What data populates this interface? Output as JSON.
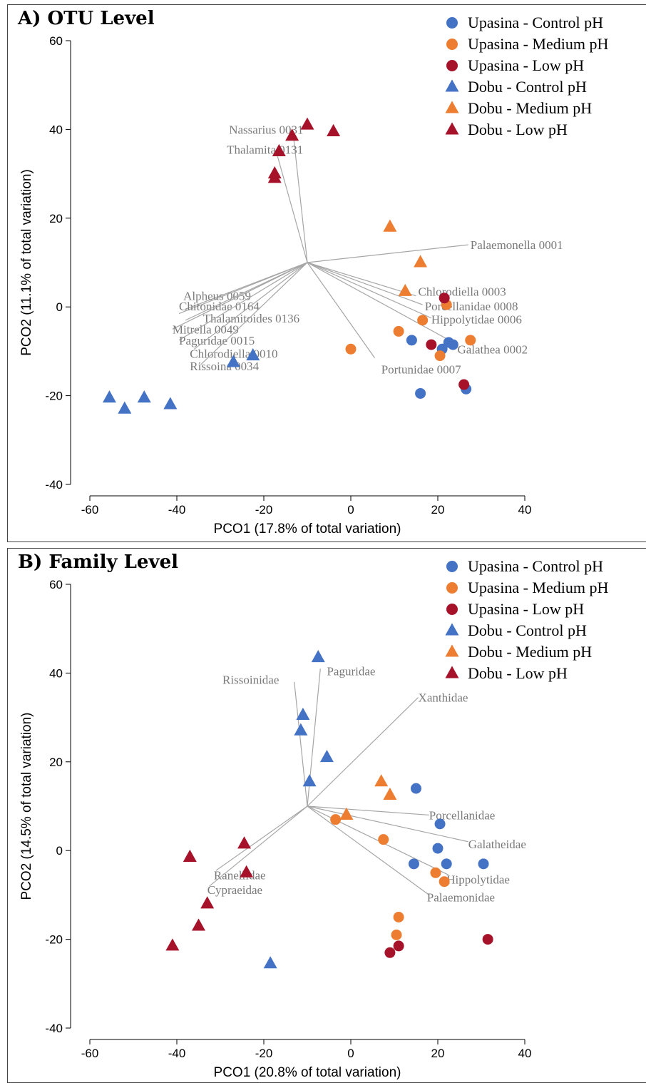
{
  "colors": {
    "control": "#4472c4",
    "medium": "#ed7d31",
    "low": "#a5122a",
    "vector": "#a6a6a6",
    "vector_label": "#7a7a7a"
  },
  "legend": [
    {
      "label": "Upasina - Control pH",
      "shape": "circle",
      "group": "control"
    },
    {
      "label": "Upasina - Medium pH",
      "shape": "circle",
      "group": "medium"
    },
    {
      "label": "Upasina - Low pH",
      "shape": "circle",
      "group": "low"
    },
    {
      "label": "Dobu - Control pH",
      "shape": "triangle",
      "group": "control"
    },
    {
      "label": "Dobu - Medium pH",
      "shape": "triangle",
      "group": "medium"
    },
    {
      "label": "Dobu - Low pH",
      "shape": "triangle",
      "group": "low"
    }
  ],
  "chart_data": [
    {
      "type": "scatter",
      "title": "A) OTU Level",
      "xlabel": "PCO1 (17.8% of total variation)",
      "ylabel": "PCO2 (11.1% of total variation)",
      "xlim": [
        -60,
        40
      ],
      "ylim": [
        -40,
        60
      ],
      "xticks": [
        -60,
        -40,
        -20,
        0,
        20,
        40
      ],
      "yticks": [
        -40,
        -20,
        0,
        20,
        40,
        60
      ],
      "legend_position": "top-right",
      "vector_origin": [
        -10,
        10
      ],
      "series": [
        {
          "name": "Upasina - Control pH",
          "shape": "circle",
          "group": "control",
          "points": [
            [
              14,
              -7.5
            ],
            [
              21,
              -9.5
            ],
            [
              22.5,
              -8
            ],
            [
              23.5,
              -8.5
            ],
            [
              16,
              -19.5
            ],
            [
              26.5,
              -18.5
            ]
          ]
        },
        {
          "name": "Upasina - Medium pH",
          "shape": "circle",
          "group": "medium",
          "points": [
            [
              0,
              -9.5
            ],
            [
              11,
              -5.5
            ],
            [
              16.5,
              -3
            ],
            [
              20.5,
              -11
            ],
            [
              22,
              0.5
            ],
            [
              27.5,
              -7.5
            ]
          ]
        },
        {
          "name": "Upasina - Low pH",
          "shape": "circle",
          "group": "low",
          "points": [
            [
              21.5,
              2
            ],
            [
              18.5,
              -8.5
            ],
            [
              26,
              -17.5
            ]
          ]
        },
        {
          "name": "Dobu - Control pH",
          "shape": "triangle",
          "group": "control",
          "points": [
            [
              -55.5,
              -20.5
            ],
            [
              -52,
              -23
            ],
            [
              -47.5,
              -20.5
            ],
            [
              -41.5,
              -22
            ],
            [
              -27,
              -12.5
            ],
            [
              -22.5,
              -11
            ]
          ]
        },
        {
          "name": "Dobu - Medium pH",
          "shape": "triangle",
          "group": "medium",
          "points": [
            [
              9,
              18
            ],
            [
              16,
              10
            ],
            [
              12.5,
              3.5
            ]
          ]
        },
        {
          "name": "Dobu - Low pH",
          "shape": "triangle",
          "group": "low",
          "points": [
            [
              -10,
              41
            ],
            [
              -4,
              39.5
            ],
            [
              -13.5,
              38.5
            ],
            [
              -16.5,
              35
            ],
            [
              -17.5,
              30
            ],
            [
              -17.5,
              29
            ]
          ]
        }
      ],
      "vectors": [
        {
          "label": "Nassarius 0031",
          "end": [
            -13.2,
            38.6
          ],
          "lx": -28,
          "ly": 40
        },
        {
          "label": "Thalamita 0131",
          "end": [
            -17,
            34.5
          ],
          "lx": -28.5,
          "ly": 35.5
        },
        {
          "label": "Palaemonella 0001",
          "end": [
            27,
            14
          ],
          "lx": 27.5,
          "ly": 14
        },
        {
          "label": "Chlorodiella 0003",
          "end": [
            15,
            2.5
          ],
          "lx": 15.5,
          "ly": 3.5
        },
        {
          "label": "Porcellanidae 0008",
          "end": [
            16.5,
            0.5
          ],
          "lx": 17,
          "ly": 0.2
        },
        {
          "label": "Hippolytidae 0006",
          "end": [
            18.5,
            -2.5
          ],
          "lx": 18.5,
          "ly": -2.8
        },
        {
          "label": "Galathea 0002",
          "end": [
            24.5,
            -8.5
          ],
          "lx": 24.5,
          "ly": -9.5
        },
        {
          "label": "Portunidae 0007",
          "end": [
            5.5,
            -11.5
          ],
          "lx": 7,
          "ly": -14
        },
        {
          "label": "Alpheus 0059",
          "end": [
            -38,
            -0.5
          ],
          "lx": -38.5,
          "ly": 2.5
        },
        {
          "label": "Chitonidae 0164",
          "end": [
            -39.5,
            -1.5
          ],
          "lx": -39.5,
          "ly": 0.2
        },
        {
          "label": "Thalamitoides 0136",
          "end": [
            -38,
            -3
          ],
          "lx": -34,
          "ly": -2.5
        },
        {
          "label": "Mitrella 0049",
          "end": [
            -41,
            -5
          ],
          "lx": -41,
          "ly": -5
        },
        {
          "label": "Paguridae 0015",
          "end": [
            -39.5,
            -7.5
          ],
          "lx": -39.5,
          "ly": -7.5
        },
        {
          "label": "Chlorodiella 0010",
          "end": [
            -36,
            -9.5
          ],
          "lx": -37,
          "ly": -10.5
        },
        {
          "label": "Rissoina 0034",
          "end": [
            -34.5,
            -13
          ],
          "lx": -37,
          "ly": -13.3
        }
      ]
    },
    {
      "type": "scatter",
      "title": "B) Family Level",
      "xlabel": "PCO1 (20.8% of total variation)",
      "ylabel": "PCO2 (14.5% of total variation)",
      "xlim": [
        -60,
        40
      ],
      "ylim": [
        -40,
        60
      ],
      "xticks": [
        -60,
        -40,
        -20,
        0,
        20,
        40
      ],
      "yticks": [
        -40,
        -20,
        0,
        20,
        40,
        60
      ],
      "legend_position": "top-right",
      "vector_origin": [
        -10,
        10
      ],
      "series": [
        {
          "name": "Upasina - Control pH",
          "shape": "circle",
          "group": "control",
          "points": [
            [
              15,
              14
            ],
            [
              20.5,
              6
            ],
            [
              20,
              0.5
            ],
            [
              14.5,
              -3
            ],
            [
              22,
              -3
            ],
            [
              30.5,
              -3
            ]
          ]
        },
        {
          "name": "Upasina - Medium pH",
          "shape": "circle",
          "group": "medium",
          "points": [
            [
              -3.5,
              7
            ],
            [
              7.5,
              2.5
            ],
            [
              19.5,
              -5
            ],
            [
              21.5,
              -7
            ],
            [
              11,
              -15
            ],
            [
              10.5,
              -19
            ]
          ]
        },
        {
          "name": "Upasina - Low pH",
          "shape": "circle",
          "group": "low",
          "points": [
            [
              9,
              -23
            ],
            [
              11,
              -21.5
            ],
            [
              31.5,
              -20
            ]
          ]
        },
        {
          "name": "Dobu - Control pH",
          "shape": "triangle",
          "group": "control",
          "points": [
            [
              -7.5,
              43.5
            ],
            [
              -11,
              30.5
            ],
            [
              -11.5,
              27
            ],
            [
              -5.5,
              21
            ],
            [
              -9.5,
              15.5
            ],
            [
              -18.5,
              -25.5
            ]
          ]
        },
        {
          "name": "Dobu - Medium pH",
          "shape": "triangle",
          "group": "medium",
          "points": [
            [
              7,
              15.5
            ],
            [
              9,
              12.5
            ],
            [
              -1,
              8
            ]
          ]
        },
        {
          "name": "Dobu - Low pH",
          "shape": "triangle",
          "group": "low",
          "points": [
            [
              -24.5,
              1.5
            ],
            [
              -37,
              -1.5
            ],
            [
              -24,
              -5
            ],
            [
              -33,
              -12
            ],
            [
              -35,
              -17
            ],
            [
              -41,
              -21.5
            ]
          ]
        }
      ],
      "vectors": [
        {
          "label": "Paguridae",
          "end": [
            -7,
            41
          ],
          "lx": -5.5,
          "ly": 40.5
        },
        {
          "label": "Rissoinidae",
          "end": [
            -13,
            38
          ],
          "lx": -29.5,
          "ly": 38.5
        },
        {
          "label": "Xanthidae",
          "end": [
            15.5,
            34.5
          ],
          "lx": 15.5,
          "ly": 34.5
        },
        {
          "label": "Porcellanidae",
          "end": [
            18,
            8
          ],
          "lx": 18,
          "ly": 8
        },
        {
          "label": "Galatheidae",
          "end": [
            27,
            2
          ],
          "lx": 27,
          "ly": 1.5
        },
        {
          "label": "Hippolytidae",
          "end": [
            22.5,
            -5.5
          ],
          "lx": 22,
          "ly": -6.5
        },
        {
          "label": "Palaemonidae",
          "end": [
            18,
            -10
          ],
          "lx": 17.5,
          "ly": -10.5
        },
        {
          "label": "Ranellidae",
          "end": [
            -31,
            -4.5
          ],
          "lx": -31.5,
          "ly": -5.5
        },
        {
          "label": "Cypraeidae",
          "end": [
            -32.5,
            -8
          ],
          "lx": -33,
          "ly": -8.8
        }
      ]
    }
  ]
}
